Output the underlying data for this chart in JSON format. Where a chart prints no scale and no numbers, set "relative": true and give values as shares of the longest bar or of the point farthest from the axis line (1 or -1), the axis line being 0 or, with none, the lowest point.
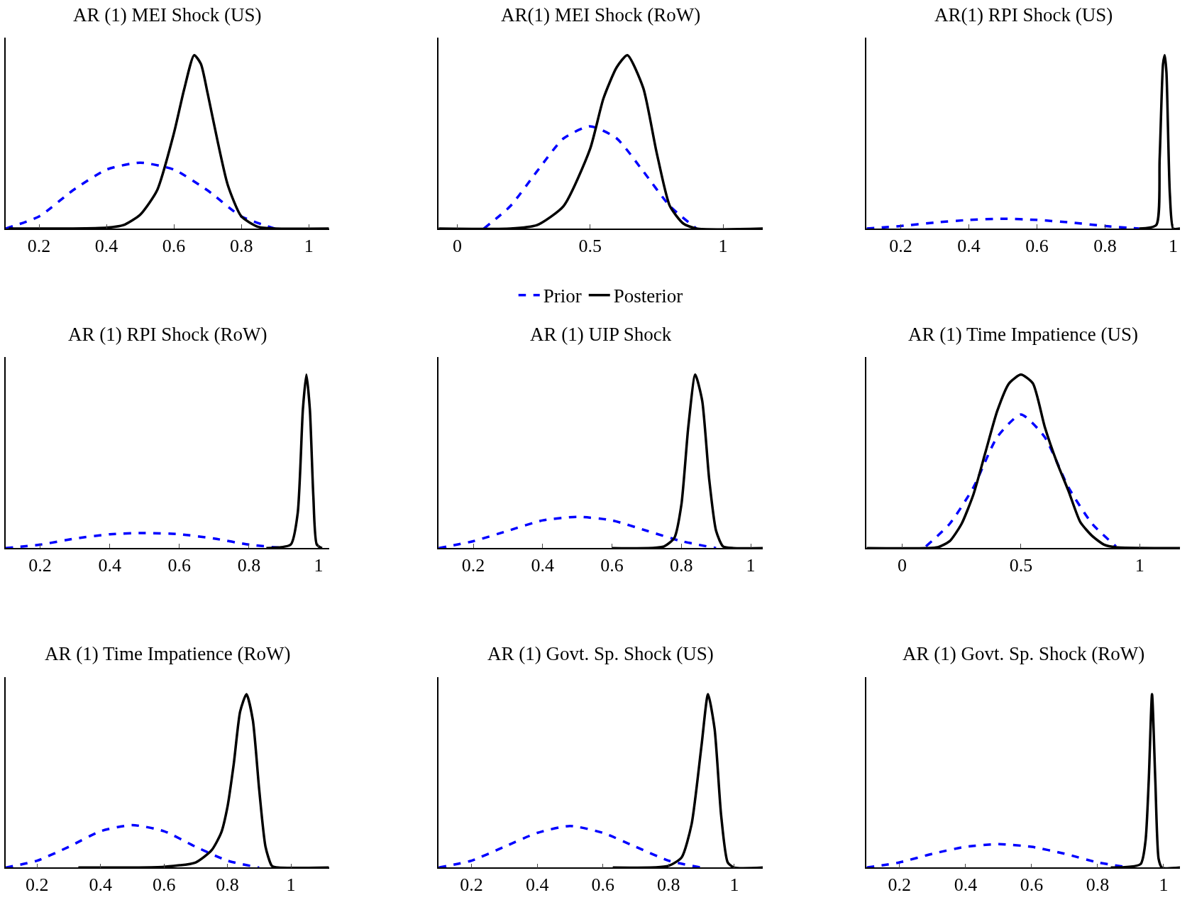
{
  "chart_data": [
    {
      "type": "line",
      "title": "AR (1) MEI Shock (US)",
      "relative": true,
      "xlim": [
        0.1,
        1.06
      ],
      "xticks": [
        0.2,
        0.4,
        0.6,
        0.8,
        1
      ],
      "legend": false,
      "series": [
        {
          "color": "#0000ff",
          "line_style": "dashed",
          "x": [
            0.1,
            0.2,
            0.3,
            0.4,
            0.5,
            0.6,
            0.7,
            0.8,
            0.9
          ],
          "values": [
            0,
            0.07,
            0.22,
            0.34,
            0.38,
            0.34,
            0.22,
            0.07,
            0
          ]
        },
        {
          "color": "#000000",
          "line_style": "solid",
          "x": [
            0.11,
            0.3,
            0.4,
            0.45,
            0.5,
            0.55,
            0.6,
            0.63,
            0.66,
            0.68,
            0.7,
            0.73,
            0.76,
            0.8,
            0.85,
            0.9,
            1.06
          ],
          "values": [
            0,
            0,
            0.005,
            0.02,
            0.08,
            0.22,
            0.55,
            0.8,
            1,
            0.95,
            0.78,
            0.5,
            0.25,
            0.07,
            0.01,
            0,
            0
          ]
        }
      ]
    },
    {
      "type": "line",
      "title": "AR(1) MEI Shock (RoW)",
      "relative": true,
      "xlim": [
        -0.07,
        1.15
      ],
      "xticks": [
        0,
        0.5,
        1
      ],
      "legend": "bottom",
      "series": [
        {
          "name": "Prior",
          "color": "#0000ff",
          "line_style": "dashed",
          "x": [
            0.1,
            0.2,
            0.3,
            0.4,
            0.5,
            0.6,
            0.7,
            0.8,
            0.9
          ],
          "values": [
            0,
            0.13,
            0.33,
            0.52,
            0.59,
            0.52,
            0.33,
            0.13,
            0
          ]
        },
        {
          "name": "Posterior",
          "color": "#000000",
          "line_style": "solid",
          "x": [
            -0.07,
            0.2,
            0.3,
            0.4,
            0.5,
            0.55,
            0.6,
            0.64,
            0.7,
            0.75,
            0.8,
            0.85,
            0.9,
            1.15
          ],
          "values": [
            0,
            0,
            0.02,
            0.13,
            0.46,
            0.75,
            0.93,
            1,
            0.81,
            0.44,
            0.13,
            0.03,
            0,
            0
          ]
        }
      ]
    },
    {
      "type": "line",
      "title": "AR(1) RPI Shock (US)",
      "relative": true,
      "xlim": [
        0.1,
        1.02
      ],
      "xticks": [
        0.2,
        0.4,
        0.6,
        0.8,
        1
      ],
      "legend": false,
      "series": [
        {
          "color": "#0000ff",
          "line_style": "dashed",
          "x": [
            0.1,
            0.2,
            0.3,
            0.4,
            0.5,
            0.6,
            0.7,
            0.8,
            0.9
          ],
          "values": [
            0,
            0.015,
            0.035,
            0.05,
            0.057,
            0.05,
            0.035,
            0.015,
            0
          ]
        },
        {
          "color": "#000000",
          "line_style": "solid",
          "x": [
            0.9,
            0.95,
            0.96,
            0.97,
            0.975,
            0.98,
            0.99,
            1.0,
            1.02
          ],
          "values": [
            0,
            0.02,
            0.4,
            0.95,
            1,
            0.9,
            0.2,
            0,
            0
          ]
        }
      ]
    },
    {
      "type": "line",
      "title": "AR (1) RPI Shock (RoW)",
      "relative": true,
      "xlim": [
        0.1,
        1.03
      ],
      "xticks": [
        0.2,
        0.4,
        0.6,
        0.8,
        1
      ],
      "legend": false,
      "series": [
        {
          "color": "#0000ff",
          "line_style": "dashed",
          "x": [
            0.1,
            0.2,
            0.3,
            0.4,
            0.5,
            0.6,
            0.7,
            0.8,
            0.9
          ],
          "values": [
            0,
            0.02,
            0.055,
            0.08,
            0.087,
            0.08,
            0.055,
            0.02,
            0
          ]
        },
        {
          "color": "#000000",
          "line_style": "solid",
          "x": [
            0.85,
            0.92,
            0.94,
            0.955,
            0.965,
            0.975,
            0.985,
            0.995,
            1.01
          ],
          "values": [
            0,
            0.02,
            0.2,
            0.8,
            1,
            0.8,
            0.3,
            0.02,
            0
          ]
        }
      ]
    },
    {
      "type": "line",
      "title": "AR (1) UIP Shock",
      "relative": true,
      "xlim": [
        0.1,
        1.035
      ],
      "xticks": [
        0.2,
        0.4,
        0.6,
        0.8,
        1
      ],
      "legend": false,
      "series": [
        {
          "color": "#0000ff",
          "line_style": "dashed",
          "x": [
            0.1,
            0.2,
            0.3,
            0.4,
            0.5,
            0.6,
            0.7,
            0.8,
            0.9
          ],
          "values": [
            0,
            0.04,
            0.1,
            0.16,
            0.18,
            0.16,
            0.1,
            0.04,
            0
          ]
        },
        {
          "color": "#000000",
          "line_style": "solid",
          "x": [
            0.6,
            0.75,
            0.78,
            0.8,
            0.82,
            0.84,
            0.86,
            0.88,
            0.9,
            0.92,
            0.95,
            1.035
          ],
          "values": [
            0,
            0.01,
            0.06,
            0.25,
            0.7,
            1,
            0.85,
            0.4,
            0.1,
            0.01,
            0,
            0
          ]
        }
      ]
    },
    {
      "type": "line",
      "title": "AR (1) Time Impatience (US)",
      "relative": true,
      "xlim": [
        -0.15,
        1.17
      ],
      "xticks": [
        0,
        0.5,
        1
      ],
      "legend": false,
      "series": [
        {
          "color": "#0000ff",
          "line_style": "dashed",
          "x": [
            0.1,
            0.2,
            0.3,
            0.4,
            0.5,
            0.6,
            0.7,
            0.8,
            0.9
          ],
          "values": [
            0.01,
            0.14,
            0.35,
            0.64,
            0.77,
            0.64,
            0.35,
            0.14,
            0.01
          ]
        },
        {
          "color": "#000000",
          "line_style": "solid",
          "x": [
            -0.15,
            0.1,
            0.15,
            0.2,
            0.25,
            0.3,
            0.35,
            0.4,
            0.45,
            0.5,
            0.55,
            0.6,
            0.65,
            0.7,
            0.75,
            0.8,
            0.85,
            0.9,
            1.17
          ],
          "values": [
            0,
            0,
            0.005,
            0.04,
            0.14,
            0.31,
            0.55,
            0.79,
            0.95,
            1,
            0.95,
            0.7,
            0.5,
            0.33,
            0.15,
            0.07,
            0.02,
            0.005,
            0
          ]
        }
      ]
    },
    {
      "type": "line",
      "title": "AR (1) Time Impatience (RoW)",
      "relative": true,
      "xlim": [
        0.1,
        1.12
      ],
      "xticks": [
        0.2,
        0.4,
        0.6,
        0.8,
        1
      ],
      "legend": false,
      "series": [
        {
          "color": "#0000ff",
          "line_style": "dashed",
          "x": [
            0.1,
            0.2,
            0.3,
            0.4,
            0.5,
            0.6,
            0.7,
            0.8,
            0.9
          ],
          "values": [
            0,
            0.04,
            0.12,
            0.21,
            0.245,
            0.21,
            0.12,
            0.04,
            0
          ]
        },
        {
          "color": "#000000",
          "line_style": "solid",
          "x": [
            0.33,
            0.6,
            0.7,
            0.75,
            0.78,
            0.8,
            0.82,
            0.84,
            0.86,
            0.88,
            0.9,
            0.92,
            0.94,
            0.96,
            1.12
          ],
          "values": [
            0,
            0.005,
            0.03,
            0.1,
            0.2,
            0.35,
            0.6,
            0.9,
            1,
            0.85,
            0.45,
            0.12,
            0.01,
            0,
            0
          ]
        }
      ]
    },
    {
      "type": "line",
      "title": "AR (1) Govt. Sp. Shock (US)",
      "relative": true,
      "xlim": [
        0.1,
        1.087
      ],
      "xticks": [
        0.2,
        0.4,
        0.6,
        0.8,
        1
      ],
      "legend": false,
      "series": [
        {
          "color": "#0000ff",
          "line_style": "dashed",
          "x": [
            0.1,
            0.2,
            0.3,
            0.4,
            0.5,
            0.6,
            0.7,
            0.8,
            0.9
          ],
          "values": [
            0,
            0.04,
            0.12,
            0.2,
            0.24,
            0.2,
            0.12,
            0.04,
            0
          ]
        },
        {
          "color": "#000000",
          "line_style": "solid",
          "x": [
            0.63,
            0.8,
            0.84,
            0.87,
            0.9,
            0.92,
            0.94,
            0.96,
            0.98,
            1.0,
            1.087
          ],
          "values": [
            0,
            0.01,
            0.06,
            0.25,
            0.7,
            1,
            0.8,
            0.3,
            0.03,
            0,
            0
          ]
        }
      ]
    },
    {
      "type": "line",
      "title": "AR (1) Govt. Sp. Shock (RoW)",
      "relative": true,
      "xlim": [
        0.1,
        1.05
      ],
      "xticks": [
        0.2,
        0.4,
        0.6,
        0.8,
        1
      ],
      "legend": false,
      "series": [
        {
          "color": "#0000ff",
          "line_style": "dashed",
          "x": [
            0.1,
            0.2,
            0.3,
            0.4,
            0.5,
            0.6,
            0.7,
            0.8,
            0.9
          ],
          "values": [
            0,
            0.03,
            0.08,
            0.12,
            0.135,
            0.12,
            0.08,
            0.03,
            0
          ]
        },
        {
          "color": "#000000",
          "line_style": "solid",
          "x": [
            0.84,
            0.93,
            0.945,
            0.955,
            0.965,
            0.975,
            0.985,
            0.995,
            1.05
          ],
          "values": [
            0,
            0.02,
            0.15,
            0.5,
            1,
            0.5,
            0.05,
            0,
            0
          ]
        }
      ]
    }
  ]
}
